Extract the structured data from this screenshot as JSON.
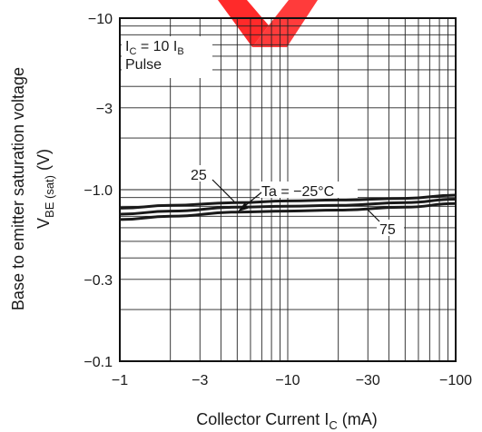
{
  "chart_data": {
    "type": "line",
    "x_scale": "log",
    "y_scale": "log",
    "xlim": [
      -1,
      -100
    ],
    "ylim": [
      -0.1,
      -10
    ],
    "grid": true,
    "x_ticks": [
      "−1",
      "−3",
      "−10",
      "−30",
      "−100"
    ],
    "y_ticks": [
      "−10",
      "−3",
      "−1.0",
      "−0.3",
      "−0.1"
    ],
    "xlabel": {
      "main": "Collector Current  I",
      "sub": "C",
      "unit": "  (mA)"
    },
    "ylabel": {
      "line1": "Base to emitter saturation voltage",
      "main": "V",
      "sub": "BE (sat)",
      "unit": "  (V)"
    },
    "conditions": {
      "line1_pre": "I",
      "line1_sub1": "C",
      "line1_mid": " = 10 I",
      "line1_sub2": "B",
      "line2": "Pulse"
    },
    "series": [
      {
        "name": "Ta = −25°C",
        "x": [
          -1,
          -2,
          -5,
          -10,
          -20,
          -50,
          -100
        ],
        "y": [
          -0.78,
          -0.81,
          -0.84,
          -0.86,
          -0.87,
          -0.89,
          -0.93
        ]
      },
      {
        "name": "25",
        "x": [
          -1,
          -2,
          -5,
          -10,
          -20,
          -50,
          -100
        ],
        "y": [
          -0.72,
          -0.75,
          -0.79,
          -0.8,
          -0.81,
          -0.84,
          -0.88
        ]
      },
      {
        "name": "75",
        "x": [
          -1,
          -2,
          -5,
          -10,
          -20,
          -50,
          -100
        ],
        "y": [
          -0.67,
          -0.7,
          -0.74,
          -0.75,
          -0.76,
          -0.79,
          -0.83
        ]
      }
    ]
  },
  "colors": {
    "curve": "#1a1a1a",
    "grid": "#222222",
    "watermark": "#ff2a2a"
  },
  "watermark_icon": "red-chevron-mark"
}
